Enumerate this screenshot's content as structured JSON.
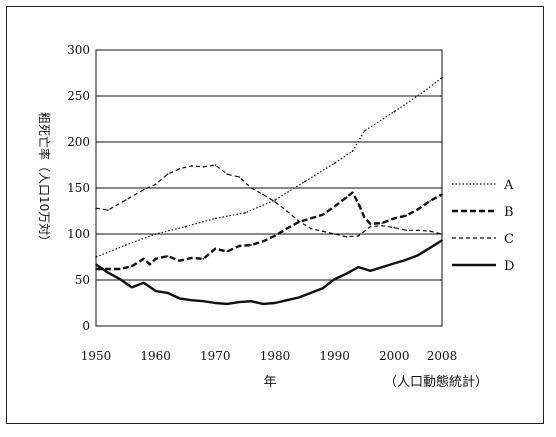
{
  "chart_data": {
    "type": "line",
    "title": "",
    "ylabel": "粗死亡率（人口10万対）",
    "xlabel": "年",
    "source": "（人口動態統計）",
    "ylim": [
      0,
      300
    ],
    "xlim": [
      1950,
      2008
    ],
    "yticks": [
      "0",
      "50",
      "100",
      "150",
      "200",
      "250",
      "300"
    ],
    "xticks": [
      "1950",
      "1960",
      "1970",
      "1980",
      "1990",
      "2000",
      "2008"
    ],
    "grid": "horizontal",
    "legend_position": "right",
    "series": [
      {
        "name": "A",
        "style": "dotted",
        "x": [
          1950,
          1955,
          1960,
          1965,
          1970,
          1975,
          1980,
          1985,
          1990,
          1993,
          1995,
          2000,
          2005,
          2008
        ],
        "values": [
          75,
          88,
          100,
          108,
          117,
          123,
          137,
          157,
          177,
          190,
          212,
          233,
          255,
          270
        ]
      },
      {
        "name": "B",
        "style": "dashed",
        "x": [
          1950,
          1952,
          1954,
          1956,
          1958,
          1959,
          1960,
          1962,
          1964,
          1966,
          1968,
          1970,
          1972,
          1974,
          1976,
          1978,
          1980,
          1982,
          1984,
          1986,
          1988,
          1990,
          1992,
          1993,
          1994,
          1995,
          1996,
          1998,
          2000,
          2002,
          2004,
          2006,
          2008
        ],
        "values": [
          62,
          62,
          62,
          65,
          73,
          67,
          73,
          76,
          71,
          74,
          73,
          84,
          81,
          87,
          88,
          92,
          98,
          106,
          113,
          117,
          121,
          130,
          140,
          145,
          133,
          118,
          111,
          112,
          117,
          120,
          127,
          136,
          143
        ]
      },
      {
        "name": "C",
        "style": "short-dashed",
        "x": [
          1950,
          1952,
          1955,
          1958,
          1960,
          1962,
          1964,
          1966,
          1968,
          1970,
          1972,
          1974,
          1976,
          1978,
          1980,
          1982,
          1984,
          1986,
          1988,
          1990,
          1992,
          1994,
          1996,
          1998,
          2000,
          2002,
          2004,
          2006,
          2008
        ],
        "values": [
          128,
          126,
          137,
          148,
          154,
          165,
          171,
          174,
          173,
          175,
          165,
          162,
          150,
          143,
          135,
          125,
          114,
          106,
          103,
          100,
          97,
          98,
          108,
          109,
          107,
          104,
          104,
          103,
          100
        ]
      },
      {
        "name": "D",
        "style": "solid",
        "x": [
          1950,
          1952,
          1954,
          1956,
          1958,
          1960,
          1962,
          1964,
          1966,
          1968,
          1970,
          1972,
          1974,
          1976,
          1978,
          1980,
          1982,
          1984,
          1986,
          1988,
          1990,
          1992,
          1994,
          1996,
          1998,
          2000,
          2002,
          2004,
          2006,
          2008
        ],
        "values": [
          67,
          58,
          51,
          42,
          47,
          38,
          36,
          30,
          28,
          27,
          25,
          24,
          26,
          27,
          24,
          25,
          28,
          31,
          36,
          41,
          51,
          57,
          64,
          60,
          64,
          68,
          72,
          77,
          85,
          93
        ]
      }
    ]
  }
}
